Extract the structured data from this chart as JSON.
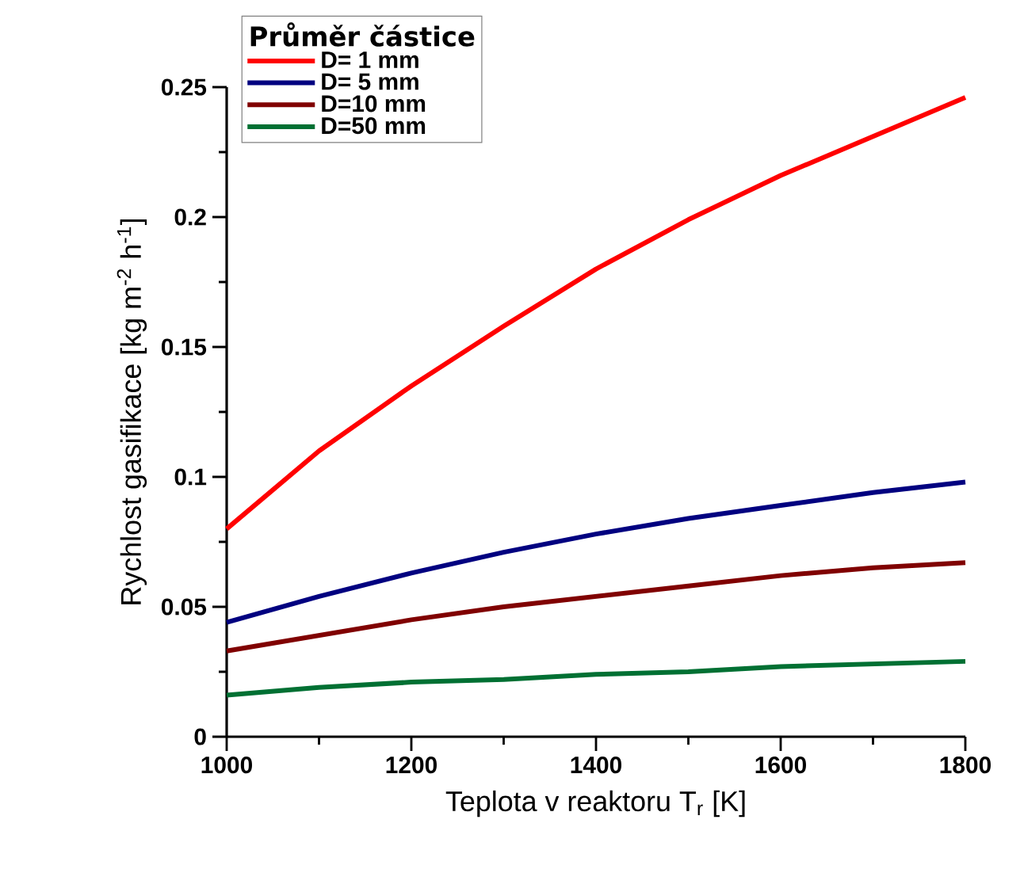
{
  "chart_data": {
    "type": "line",
    "xlabel": "Teplota v reaktoru T$_{r}$ [K]",
    "ylabel": "Rychlost gasifikace [kg m$^{-2}$ h$^{-1}$]",
    "legend_title": "Průměr částice",
    "legend": "top left",
    "grid": false,
    "line_style": "solid",
    "x": [
      1000,
      1100,
      1200,
      1300,
      1400,
      1500,
      1600,
      1700,
      1800
    ],
    "xlim": [
      1000,
      1800
    ],
    "xticks": [
      1000,
      1200,
      1400,
      1600,
      1800
    ],
    "ylim": [
      0,
      0.25
    ],
    "yticks": [
      0,
      0.05,
      0.1,
      0.15,
      0.2,
      0.25
    ],
    "series": [
      {
        "name": "D= 1 mm",
        "color": "#ff0000",
        "values": [
          0.08,
          0.11,
          0.135,
          0.158,
          0.18,
          0.199,
          0.216,
          0.231,
          0.246
        ]
      },
      {
        "name": "D= 5 mm",
        "color": "#000080",
        "values": [
          0.044,
          0.054,
          0.063,
          0.071,
          0.078,
          0.084,
          0.089,
          0.094,
          0.098
        ]
      },
      {
        "name": "D=10 mm",
        "color": "#800000",
        "values": [
          0.033,
          0.039,
          0.045,
          0.05,
          0.054,
          0.058,
          0.062,
          0.065,
          0.067
        ]
      },
      {
        "name": "D=50 mm",
        "color": "#007033",
        "values": [
          0.016,
          0.019,
          0.021,
          0.022,
          0.024,
          0.025,
          0.027,
          0.028,
          0.029
        ]
      }
    ]
  }
}
